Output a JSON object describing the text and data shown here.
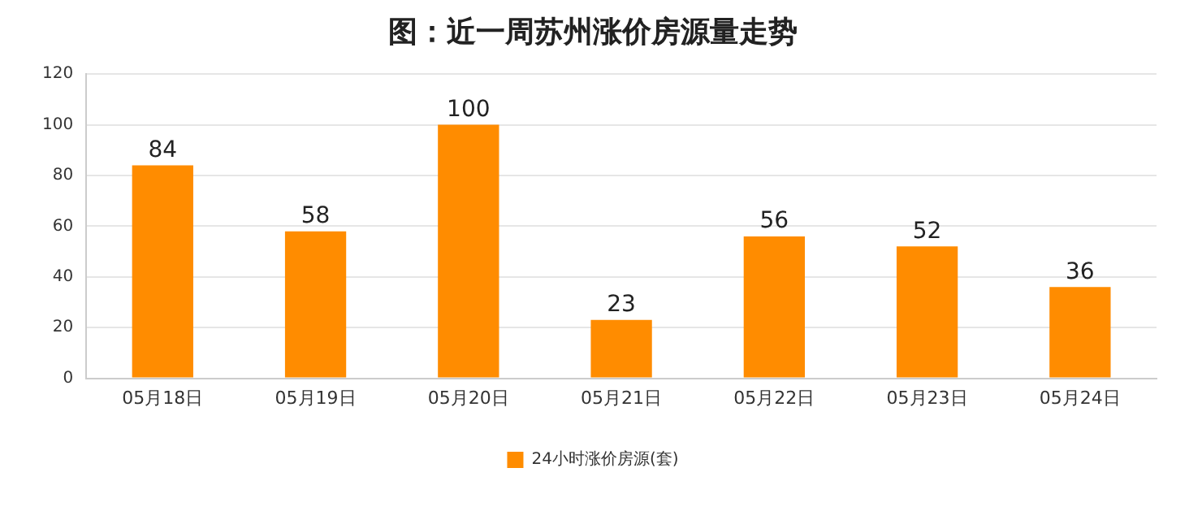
{
  "chart_data": {
    "type": "bar",
    "title": "图：近一周苏州涨价房源量走势",
    "categories": [
      "05月18日",
      "05月19日",
      "05月20日",
      "05月21日",
      "05月22日",
      "05月23日",
      "05月24日"
    ],
    "series": [
      {
        "name": "24小时涨价房源(套)",
        "color": "#ff8c00",
        "values": [
          84,
          58,
          100,
          23,
          56,
          52,
          36
        ]
      }
    ],
    "ylim": [
      0,
      120
    ],
    "yticks": [
      0,
      20,
      40,
      60,
      80,
      100,
      120
    ],
    "grid": "y",
    "legend": "bottom",
    "data_labels": true
  }
}
